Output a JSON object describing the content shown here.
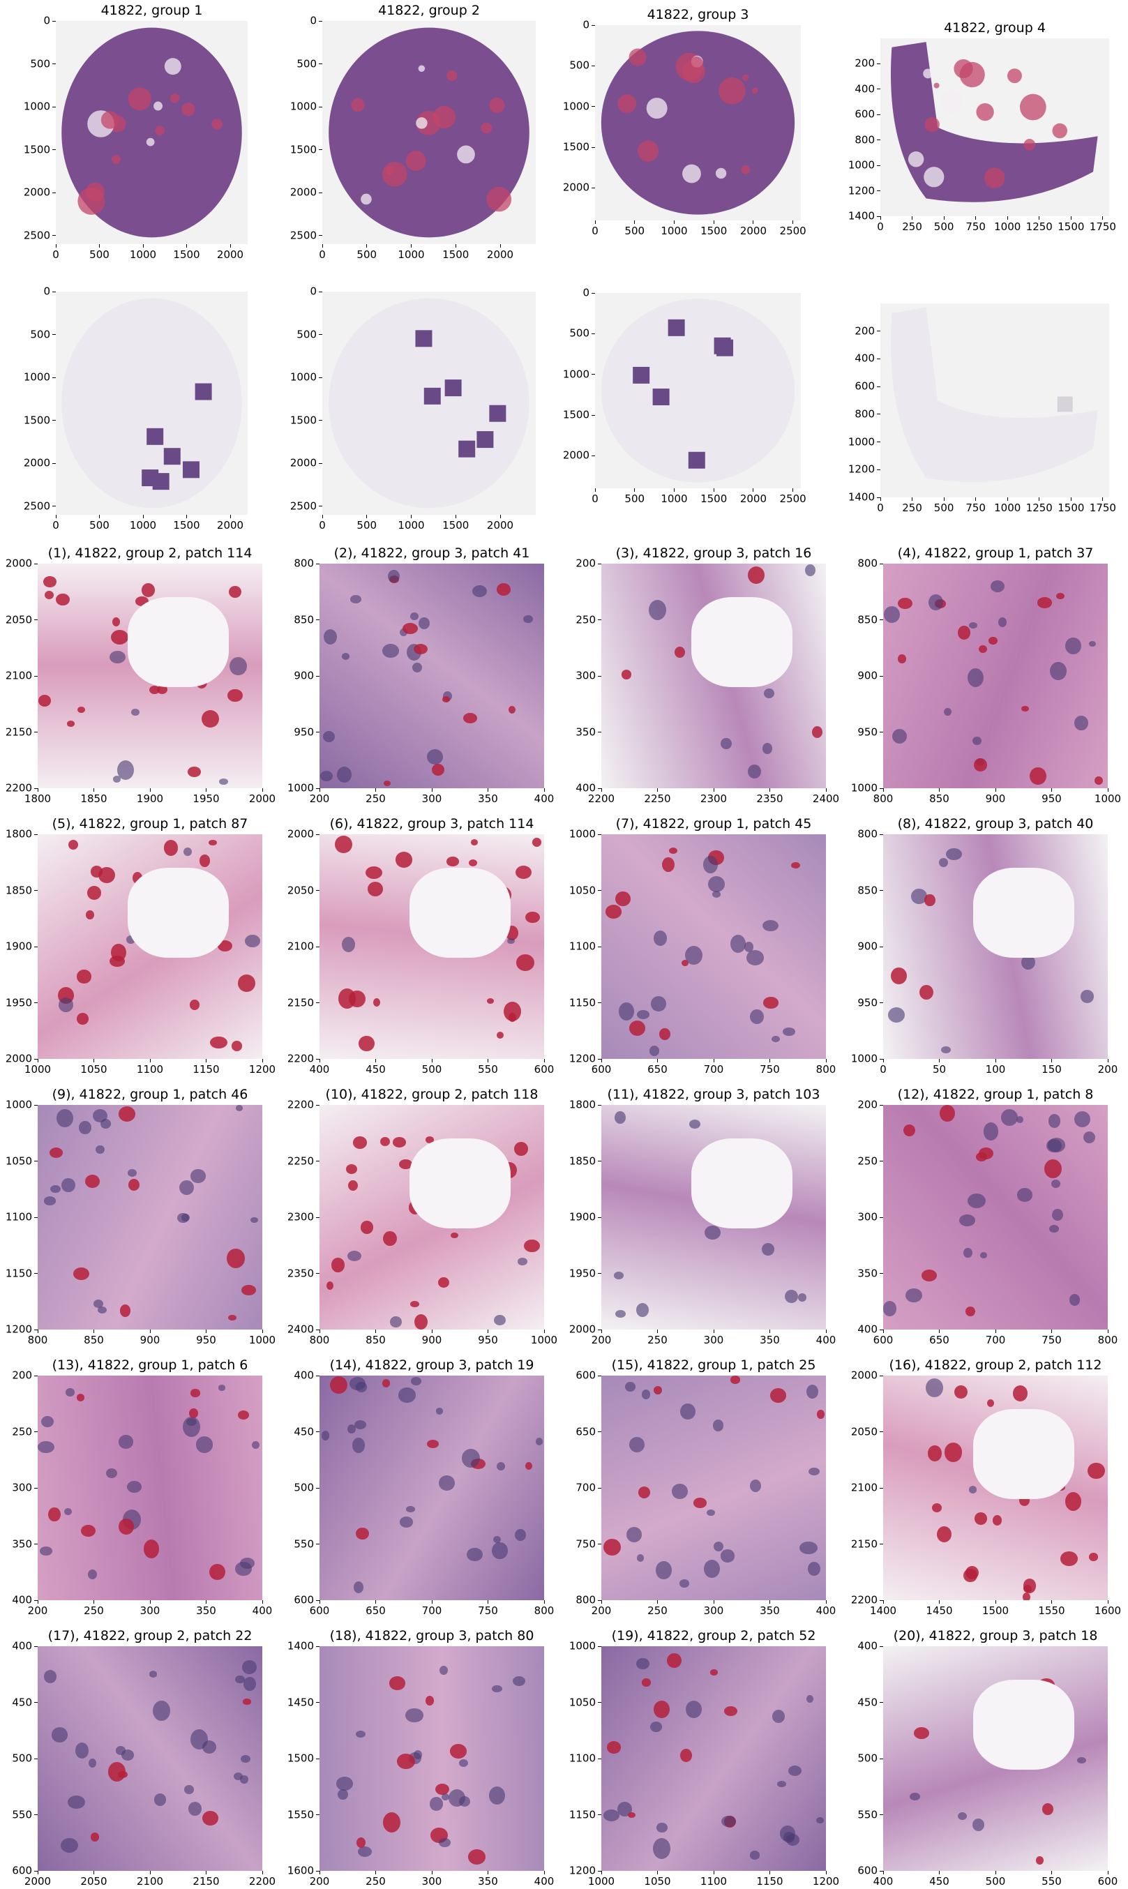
{
  "overviews": [
    {
      "title": "41822, group 1",
      "xticks": [
        "0",
        "500",
        "1000",
        "1500",
        "2000"
      ],
      "yticks": [
        "0",
        "500",
        "1000",
        "1500",
        "2000",
        "2500"
      ],
      "xmax": 2200,
      "ymax": 2600
    },
    {
      "title": "41822, group 2",
      "xticks": [
        "0",
        "500",
        "1000",
        "1500",
        "2000"
      ],
      "yticks": [
        "0",
        "500",
        "1000",
        "1500",
        "2000",
        "2500"
      ],
      "xmax": 2400,
      "ymax": 2600
    },
    {
      "title": "41822, group 3",
      "xticks": [
        "0",
        "500",
        "1000",
        "1500",
        "2000",
        "2500"
      ],
      "yticks": [
        "0",
        "500",
        "1000",
        "1500",
        "2000"
      ],
      "xmax": 2600,
      "ymax": 2400
    },
    {
      "title": "41822, group 4",
      "xticks": [
        "0",
        "250",
        "500",
        "750",
        "1000",
        "1250",
        "1500",
        "1750"
      ],
      "yticks": [
        "200",
        "400",
        "600",
        "800",
        "1000",
        "1200",
        "1400"
      ],
      "xmax": 1800,
      "ymax": 1400
    }
  ],
  "masks": [
    {
      "xticks": [
        "0",
        "500",
        "1000",
        "1500",
        "2000"
      ],
      "yticks": [
        "0",
        "500",
        "1000",
        "1500",
        "2000",
        "2500"
      ],
      "xmax": 2200,
      "ymax": 2600
    },
    {
      "xticks": [
        "0",
        "500",
        "1000",
        "1500",
        "2000"
      ],
      "yticks": [
        "0",
        "500",
        "1000",
        "1500",
        "2000",
        "2500"
      ],
      "xmax": 2400,
      "ymax": 2600
    },
    {
      "xticks": [
        "0",
        "500",
        "1000",
        "1500",
        "2000",
        "2500"
      ],
      "yticks": [
        "0",
        "500",
        "1000",
        "1500",
        "2000"
      ],
      "xmax": 2600,
      "ymax": 2400
    },
    {
      "xticks": [
        "0",
        "250",
        "500",
        "750",
        "1000",
        "1250",
        "1500",
        "1750"
      ],
      "yticks": [
        "200",
        "400",
        "600",
        "800",
        "1000",
        "1200",
        "1400"
      ],
      "xmax": 1800,
      "ymax": 1400
    }
  ],
  "patches": [
    {
      "title": "(1), 41822, group 2, patch 114",
      "xticks": [
        "1800",
        "1850",
        "1900",
        "1950",
        "2000"
      ],
      "yticks": [
        "2000",
        "2050",
        "2100",
        "2150",
        "2200"
      ],
      "tone": "rbc"
    },
    {
      "title": "(2), 41822, group 3, patch 41",
      "xticks": [
        "200",
        "250",
        "300",
        "350",
        "400"
      ],
      "yticks": [
        "800",
        "850",
        "900",
        "950",
        "1000"
      ],
      "tone": "dark"
    },
    {
      "title": "(3), 41822, group 3, patch 16",
      "xticks": [
        "2200",
        "2250",
        "2300",
        "2350",
        "2400"
      ],
      "yticks": [
        "200",
        "250",
        "300",
        "350",
        "400"
      ],
      "tone": "edge"
    },
    {
      "title": "(4), 41822, group 1, patch 37",
      "xticks": [
        "800",
        "850",
        "900",
        "950",
        "1000"
      ],
      "yticks": [
        "800",
        "850",
        "900",
        "950",
        "1000"
      ],
      "tone": "pink"
    },
    {
      "title": "(5), 41822, group 1, patch 87",
      "xticks": [
        "1000",
        "1050",
        "1100",
        "1150",
        "1200"
      ],
      "yticks": [
        "1800",
        "1850",
        "1900",
        "1950",
        "2000"
      ],
      "tone": "rbc"
    },
    {
      "title": "(6), 41822, group 3, patch 114",
      "xticks": [
        "400",
        "450",
        "500",
        "550",
        "600"
      ],
      "yticks": [
        "2000",
        "2050",
        "2100",
        "2150",
        "2200"
      ],
      "tone": "rbc"
    },
    {
      "title": "(7), 41822, group 1, patch 45",
      "xticks": [
        "600",
        "650",
        "700",
        "750",
        "800"
      ],
      "yticks": [
        "1000",
        "1050",
        "1100",
        "1150",
        "1200"
      ],
      "tone": "purple"
    },
    {
      "title": "(8), 41822, group 3, patch 40",
      "xticks": [
        "0",
        "50",
        "100",
        "150",
        "200"
      ],
      "yticks": [
        "800",
        "850",
        "900",
        "950",
        "1000"
      ],
      "tone": "edge"
    },
    {
      "title": "(9), 41822, group 1, patch 46",
      "xticks": [
        "800",
        "850",
        "900",
        "950",
        "1000"
      ],
      "yticks": [
        "1000",
        "1050",
        "1100",
        "1150",
        "1200"
      ],
      "tone": "purple"
    },
    {
      "title": "(10), 41822, group 2, patch 118",
      "xticks": [
        "800",
        "850",
        "900",
        "950",
        "1000"
      ],
      "yticks": [
        "2200",
        "2250",
        "2300",
        "2350",
        "2400"
      ],
      "tone": "rbc"
    },
    {
      "title": "(11), 41822, group 3, patch 103",
      "xticks": [
        "200",
        "250",
        "300",
        "350",
        "400"
      ],
      "yticks": [
        "1800",
        "1850",
        "1900",
        "1950",
        "2000"
      ],
      "tone": "edge"
    },
    {
      "title": "(12), 41822, group 1, patch 8",
      "xticks": [
        "600",
        "650",
        "700",
        "750",
        "800"
      ],
      "yticks": [
        "200",
        "250",
        "300",
        "350",
        "400"
      ],
      "tone": "pink"
    },
    {
      "title": "(13), 41822, group 1, patch 6",
      "xticks": [
        "200",
        "250",
        "300",
        "350",
        "400"
      ],
      "yticks": [
        "200",
        "250",
        "300",
        "350",
        "400"
      ],
      "tone": "pink"
    },
    {
      "title": "(14), 41822, group 3, patch 19",
      "xticks": [
        "600",
        "650",
        "700",
        "750",
        "800"
      ],
      "yticks": [
        "400",
        "450",
        "500",
        "550",
        "600"
      ],
      "tone": "dark"
    },
    {
      "title": "(15), 41822, group 1, patch 25",
      "xticks": [
        "200",
        "250",
        "300",
        "350",
        "400"
      ],
      "yticks": [
        "600",
        "650",
        "700",
        "750",
        "800"
      ],
      "tone": "purple"
    },
    {
      "title": "(16), 41822, group 2, patch 112",
      "xticks": [
        "1400",
        "1450",
        "1500",
        "1550",
        "1600"
      ],
      "yticks": [
        "2000",
        "2050",
        "2100",
        "2150",
        "2200"
      ],
      "tone": "rbc"
    },
    {
      "title": "(17), 41822, group 2, patch 22",
      "xticks": [
        "2000",
        "2050",
        "2100",
        "2150",
        "2200"
      ],
      "yticks": [
        "400",
        "450",
        "500",
        "550",
        "600"
      ],
      "tone": "dark"
    },
    {
      "title": "(18), 41822, group 3, patch 80",
      "xticks": [
        "200",
        "250",
        "300",
        "350",
        "400"
      ],
      "yticks": [
        "1400",
        "1450",
        "1500",
        "1550",
        "1600"
      ],
      "tone": "purple"
    },
    {
      "title": "(19), 41822, group 2, patch 52",
      "xticks": [
        "1000",
        "1050",
        "1100",
        "1150",
        "1200"
      ],
      "yticks": [
        "1000",
        "1050",
        "1100",
        "1150",
        "1200"
      ],
      "tone": "dark"
    },
    {
      "title": "(20), 41822, group 3, patch 18",
      "xticks": [
        "400",
        "450",
        "500",
        "550",
        "600"
      ],
      "yticks": [
        "400",
        "450",
        "500",
        "550",
        "600"
      ],
      "tone": "edge"
    }
  ],
  "colors": {
    "tissue": "#7b4e8f",
    "stroma": "#c98fb3",
    "rbc": "#b5203a",
    "background": "#f2f2f2",
    "nuclei": "#4a3a73",
    "mask": "#ece8f0"
  }
}
